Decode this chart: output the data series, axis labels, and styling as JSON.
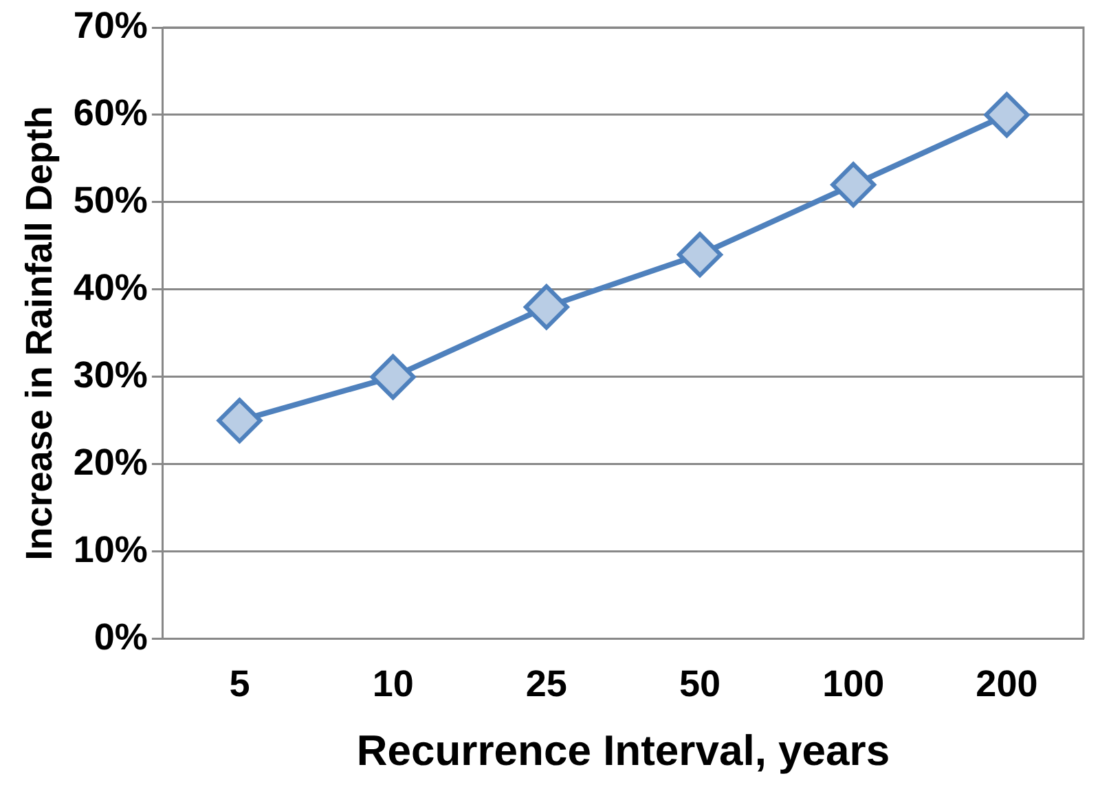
{
  "chart_data": {
    "type": "line",
    "xlabel": "Recurrence Interval, years",
    "ylabel": "Increase in Rainfall Depth",
    "categories": [
      "5",
      "10",
      "25",
      "50",
      "100",
      "200"
    ],
    "series": [
      {
        "color": "#4f81bd",
        "values": [
          25,
          30,
          38,
          44,
          52,
          60
        ]
      }
    ],
    "ylim": [
      0,
      70
    ],
    "yticks": [
      {
        "value": 0,
        "label": "0%"
      },
      {
        "value": 10,
        "label": "10%"
      },
      {
        "value": 20,
        "label": "20%"
      },
      {
        "value": 30,
        "label": "30%"
      },
      {
        "value": 40,
        "label": "40%"
      },
      {
        "value": 50,
        "label": "50%"
      },
      {
        "value": 60,
        "label": "60%"
      },
      {
        "value": 70,
        "label": "70%"
      }
    ],
    "grid": "y",
    "marker": "diamond",
    "line_style": "solid",
    "legend": false
  }
}
